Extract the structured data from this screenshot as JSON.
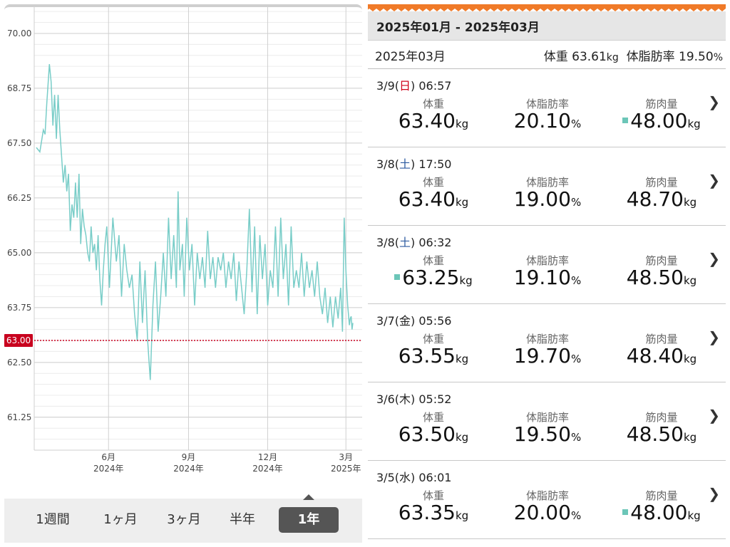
{
  "chart_data": {
    "type": "line",
    "y_ticks": [
      "70.00",
      "68.75",
      "67.50",
      "66.25",
      "65.00",
      "63.75",
      "62.50",
      "61.25"
    ],
    "ylim": [
      60.5,
      70.6
    ],
    "x_ticks": [
      {
        "month": "6月",
        "year": "2024年"
      },
      {
        "month": "9月",
        "year": "2024年"
      },
      {
        "month": "12月",
        "year": "2024年"
      },
      {
        "month": "3月",
        "year": "2025年"
      }
    ],
    "goal_label": "63.00",
    "goal_value": 63.0,
    "grid": true,
    "series_color": "#79cdc8",
    "goal_color": "#c8001e",
    "x_range": [
      "2024-03-10",
      "2025-03-09"
    ],
    "series": [
      {
        "x": [
          "2024-03-10",
          "2024-03-14",
          "2024-03-18",
          "2024-03-20",
          "2024-03-22",
          "2024-03-25",
          "2024-03-27",
          "2024-03-29",
          "2024-03-31",
          "2024-04-02",
          "2024-04-04",
          "2024-04-06",
          "2024-04-08",
          "2024-04-10",
          "2024-04-12",
          "2024-04-14",
          "2024-04-16",
          "2024-04-18",
          "2024-04-20",
          "2024-04-22",
          "2024-04-24",
          "2024-04-26",
          "2024-04-28",
          "2024-04-30",
          "2024-05-02",
          "2024-05-04",
          "2024-05-06",
          "2024-05-08",
          "2024-05-10",
          "2024-05-12",
          "2024-05-14",
          "2024-05-16",
          "2024-05-18",
          "2024-05-20",
          "2024-05-22",
          "2024-05-24",
          "2024-05-26",
          "2024-05-28",
          "2024-05-30",
          "2024-06-02",
          "2024-06-06",
          "2024-06-10",
          "2024-06-13",
          "2024-06-16",
          "2024-06-19",
          "2024-06-22",
          "2024-06-25",
          "2024-06-28",
          "2024-07-01",
          "2024-07-04",
          "2024-07-07",
          "2024-07-10",
          "2024-07-13",
          "2024-07-16",
          "2024-07-19",
          "2024-07-22",
          "2024-07-25",
          "2024-07-28",
          "2024-07-31",
          "2024-08-03",
          "2024-08-06",
          "2024-08-09",
          "2024-08-12",
          "2024-08-15",
          "2024-08-18",
          "2024-08-20",
          "2024-08-22",
          "2024-08-25",
          "2024-08-27",
          "2024-08-30",
          "2024-09-02",
          "2024-09-05",
          "2024-09-08",
          "2024-09-11",
          "2024-09-14",
          "2024-09-17",
          "2024-09-20",
          "2024-09-23",
          "2024-09-26",
          "2024-09-29",
          "2024-10-02",
          "2024-10-05",
          "2024-10-08",
          "2024-10-11",
          "2024-10-14",
          "2024-10-17",
          "2024-10-20",
          "2024-10-23",
          "2024-10-26",
          "2024-10-29",
          "2024-11-01",
          "2024-11-04",
          "2024-11-07",
          "2024-11-10",
          "2024-11-13",
          "2024-11-16",
          "2024-11-19",
          "2024-11-22",
          "2024-11-25",
          "2024-11-28",
          "2024-12-01",
          "2024-12-04",
          "2024-12-07",
          "2024-12-10",
          "2024-12-13",
          "2024-12-16",
          "2024-12-19",
          "2024-12-22",
          "2024-12-25",
          "2024-12-28",
          "2024-12-31",
          "2025-01-03",
          "2025-01-06",
          "2025-01-09",
          "2025-01-12",
          "2025-01-15",
          "2025-01-18",
          "2025-01-21",
          "2025-01-24",
          "2025-01-27",
          "2025-01-30",
          "2025-02-02",
          "2025-02-05",
          "2025-02-08",
          "2025-02-11",
          "2025-02-14",
          "2025-02-17",
          "2025-02-20",
          "2025-02-23",
          "2025-02-25",
          "2025-02-27",
          "2025-03-01",
          "2025-03-03",
          "2025-03-05",
          "2025-03-06",
          "2025-03-07",
          "2025-03-08",
          "2025-03-09"
        ],
        "y": [
          67.4,
          67.3,
          67.8,
          67.7,
          68.4,
          69.3,
          68.9,
          67.9,
          68.6,
          67.6,
          68.6,
          67.8,
          67.2,
          66.6,
          67.0,
          66.4,
          66.8,
          65.5,
          66.1,
          65.8,
          66.6,
          65.8,
          66.8,
          65.2,
          66.0,
          65.6,
          65.4,
          65.0,
          64.8,
          65.6,
          65.0,
          65.2,
          64.6,
          65.4,
          64.4,
          63.8,
          64.6,
          65.2,
          65.6,
          64.2,
          65.8,
          64.8,
          65.4,
          64.0,
          65.2,
          64.6,
          64.2,
          64.5,
          63.6,
          63.0,
          64.8,
          63.4,
          64.6,
          63.0,
          62.1,
          63.8,
          64.8,
          63.2,
          64.0,
          65.0,
          64.0,
          65.8,
          64.4,
          65.4,
          64.2,
          66.4,
          64.6,
          65.2,
          64.0,
          65.8,
          64.6,
          65.2,
          63.8,
          65.0,
          64.4,
          64.9,
          64.2,
          65.5,
          64.4,
          64.9,
          64.2,
          64.9,
          64.6,
          65.0,
          64.2,
          64.8,
          64.4,
          65.0,
          63.9,
          64.8,
          64.2,
          63.6,
          64.6,
          66.0,
          64.1,
          65.6,
          63.6,
          65.4,
          64.4,
          65.2,
          63.8,
          64.6,
          64.2,
          65.6,
          64.0,
          65.8,
          64.4,
          65.2,
          63.8,
          65.6,
          64.2,
          64.6,
          64.2,
          65.0,
          64.0,
          64.8,
          64.2,
          64.6,
          64.0,
          64.8,
          64.0,
          63.6,
          64.2,
          63.4,
          64.0,
          63.3,
          64.0,
          63.5,
          64.2,
          63.2,
          65.8,
          64.6,
          63.8,
          63.35,
          63.5,
          63.55,
          63.25,
          63.4
        ]
      }
    ]
  },
  "period_tabs": [
    "1週間",
    "1ヶ月",
    "3ヶ月",
    "半年",
    "1年"
  ],
  "active_period": "1年",
  "range_title": "2025年01月 - 2025年03月",
  "month_summary": {
    "month": "2025年03月",
    "weight_label": "体重",
    "weight_value": "63.61",
    "weight_unit": "kg",
    "fat_label": "体脂肪率",
    "fat_value": "19.50",
    "fat_unit": "%"
  },
  "labels": {
    "weight": "体重",
    "fat": "体脂肪率",
    "muscle": "筋肉量",
    "kg": "kg",
    "pct": "%"
  },
  "records": [
    {
      "date": "3/9(",
      "day": "日",
      "day_type": "sun",
      "time": ") 06:57",
      "weight": "63.40",
      "fat": "20.10",
      "muscle": "48.00",
      "mark": "muscle"
    },
    {
      "date": "3/8(",
      "day": "土",
      "day_type": "sat",
      "time": ") 17:50",
      "weight": "63.40",
      "fat": "19.00",
      "muscle": "48.70",
      "mark": ""
    },
    {
      "date": "3/8(",
      "day": "土",
      "day_type": "sat",
      "time": ") 06:32",
      "weight": "63.25",
      "fat": "19.10",
      "muscle": "48.50",
      "mark": "weight"
    },
    {
      "date": "3/7(",
      "day": "金",
      "day_type": "",
      "time": ") 05:56",
      "weight": "63.55",
      "fat": "19.70",
      "muscle": "48.40",
      "mark": ""
    },
    {
      "date": "3/6(",
      "day": "木",
      "day_type": "",
      "time": ") 05:52",
      "weight": "63.50",
      "fat": "19.50",
      "muscle": "48.50",
      "mark": ""
    },
    {
      "date": "3/5(",
      "day": "水",
      "day_type": "",
      "time": ") 06:01",
      "weight": "63.35",
      "fat": "20.00",
      "muscle": "48.00",
      "mark": "muscle"
    }
  ],
  "mark_color": "#6cc6b8",
  "accent_orange": "#f07a28"
}
